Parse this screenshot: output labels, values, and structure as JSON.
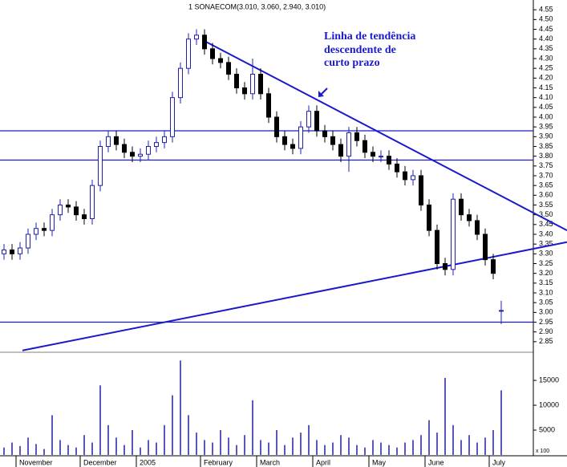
{
  "chart_data": [
    {
      "type": "candlestick",
      "title": "1 SONAECOM(3.010, 3.060, 2.940, 3.010)",
      "annotation": [
        "Linha de tendência",
        "descendente de",
        "curto prazo"
      ],
      "categories": [
        null,
        null,
        "November",
        null,
        null,
        null,
        null,
        null,
        null,
        null,
        "December",
        null,
        null,
        null,
        null,
        null,
        null,
        "2005",
        null,
        null,
        null,
        null,
        null,
        null,
        null,
        "February",
        null,
        null,
        null,
        null,
        null,
        null,
        "March",
        null,
        null,
        null,
        null,
        null,
        null,
        "April",
        null,
        null,
        null,
        null,
        null,
        null,
        "May",
        null,
        null,
        null,
        null,
        null,
        null,
        "June",
        null,
        null,
        null,
        null,
        null,
        null,
        null,
        "July",
        null
      ],
      "open": [
        3.3,
        3.32,
        3.3,
        3.33,
        3.4,
        3.43,
        3.42,
        3.5,
        3.55,
        3.54,
        3.5,
        3.48,
        3.65,
        3.85,
        3.9,
        3.86,
        3.82,
        3.8,
        3.81,
        3.85,
        3.87,
        3.9,
        4.1,
        4.25,
        4.4,
        4.42,
        4.35,
        4.3,
        4.28,
        4.22,
        4.15,
        4.12,
        4.22,
        4.12,
        4.0,
        3.9,
        3.86,
        3.84,
        3.95,
        4.03,
        3.93,
        3.9,
        3.86,
        3.8,
        3.92,
        3.88,
        3.82,
        3.8,
        3.8,
        3.76,
        3.72,
        3.68,
        3.7,
        3.55,
        3.42,
        3.25,
        3.22,
        3.58,
        3.5,
        3.47,
        3.4,
        3.27,
        3.01
      ],
      "high": [
        3.35,
        3.35,
        3.36,
        3.43,
        3.46,
        3.46,
        3.53,
        3.58,
        3.58,
        3.57,
        3.53,
        3.68,
        3.88,
        3.93,
        3.93,
        3.89,
        3.85,
        3.84,
        3.88,
        3.9,
        3.93,
        4.13,
        4.28,
        4.43,
        4.45,
        4.45,
        4.38,
        4.33,
        4.31,
        4.25,
        4.18,
        4.3,
        4.25,
        4.15,
        4.03,
        3.93,
        3.89,
        3.98,
        4.06,
        4.06,
        3.96,
        3.93,
        3.89,
        3.95,
        3.95,
        3.91,
        3.85,
        3.83,
        3.83,
        3.79,
        3.75,
        3.73,
        3.73,
        3.58,
        3.45,
        3.28,
        3.61,
        3.61,
        3.53,
        3.5,
        3.43,
        3.3,
        3.06
      ],
      "low": [
        3.27,
        3.27,
        3.27,
        3.3,
        3.37,
        3.39,
        3.39,
        3.47,
        3.51,
        3.47,
        3.45,
        3.45,
        3.62,
        3.82,
        3.83,
        3.79,
        3.77,
        3.77,
        3.78,
        3.82,
        3.84,
        3.87,
        4.07,
        4.22,
        4.37,
        4.32,
        4.27,
        4.25,
        4.19,
        4.12,
        4.09,
        4.09,
        4.09,
        3.97,
        3.87,
        3.83,
        3.81,
        3.81,
        3.92,
        3.9,
        3.87,
        3.83,
        3.77,
        3.72,
        3.85,
        3.79,
        3.77,
        3.77,
        3.73,
        3.69,
        3.65,
        3.65,
        3.52,
        3.39,
        3.22,
        3.19,
        3.19,
        3.47,
        3.44,
        3.37,
        3.24,
        3.17,
        2.94
      ],
      "close": [
        3.32,
        3.3,
        3.33,
        3.4,
        3.43,
        3.42,
        3.5,
        3.55,
        3.54,
        3.5,
        3.48,
        3.65,
        3.85,
        3.9,
        3.86,
        3.82,
        3.8,
        3.81,
        3.85,
        3.87,
        3.9,
        4.1,
        4.25,
        4.4,
        4.42,
        4.35,
        4.3,
        4.28,
        4.22,
        4.15,
        4.12,
        4.22,
        4.12,
        4.0,
        3.9,
        3.86,
        3.84,
        3.95,
        4.03,
        3.93,
        3.9,
        3.86,
        3.8,
        3.92,
        3.88,
        3.82,
        3.8,
        3.8,
        3.76,
        3.72,
        3.68,
        3.7,
        3.55,
        3.42,
        3.25,
        3.22,
        3.58,
        3.5,
        3.47,
        3.4,
        3.27,
        3.2,
        3.01
      ],
      "up_color": "#2020a8",
      "down_color": "#000000",
      "line_color": "#1a1acc",
      "hlines": [
        3.93,
        3.78,
        2.95
      ],
      "trendlines": [
        {
          "from": [
            25,
            4.39
          ],
          "to": [
            70.2,
            3.42
          ]
        },
        {
          "from": [
            2.3,
            2.805
          ],
          "to": [
            70.2,
            3.36
          ]
        }
      ],
      "ylim": [
        2.8,
        4.6
      ],
      "yticks": [
        2.85,
        {
          "value": 2.9,
          "label": "2.90"
        },
        2.95,
        {
          "value": 3,
          "label": "3.00"
        },
        3.05,
        {
          "value": 3.1,
          "label": "3.10"
        },
        3.15,
        {
          "value": 3.2,
          "label": "3.20"
        },
        3.25,
        {
          "value": 3.3,
          "label": "3.30"
        },
        3.35,
        {
          "value": 3.4,
          "label": "3.40"
        },
        3.45,
        {
          "value": 3.5,
          "label": "3.50"
        },
        3.55,
        {
          "value": 3.6,
          "label": "3.60"
        },
        3.65,
        {
          "value": 3.7,
          "label": "3.70"
        },
        3.75,
        {
          "value": 3.8,
          "label": "3.80"
        },
        3.85,
        {
          "value": 3.9,
          "label": "3.90"
        },
        3.95,
        {
          "value": 4,
          "label": "4.00"
        },
        4.05,
        {
          "value": 4.1,
          "label": "4.10"
        },
        4.15,
        {
          "value": 4.2,
          "label": "4.20"
        },
        4.25,
        {
          "value": 4.3,
          "label": "4.30"
        },
        4.35,
        {
          "value": 4.4,
          "label": "4.40"
        },
        4.45,
        {
          "value": 4.5,
          "label": "4.50"
        },
        4.55
      ]
    },
    {
      "type": "bar",
      "unit_label": "x 100",
      "color": "#2020a8",
      "values": [
        1500,
        2500,
        1800,
        3500,
        2200,
        1200,
        8000,
        3000,
        2000,
        1500,
        4000,
        2500,
        14000,
        6000,
        3500,
        2000,
        5000,
        1500,
        3000,
        2500,
        6000,
        12000,
        19000,
        8000,
        4500,
        3000,
        2500,
        5000,
        3500,
        2000,
        4000,
        11000,
        3000,
        2500,
        5000,
        2000,
        3500,
        4500,
        6000,
        3000,
        2000,
        2500,
        4000,
        3500,
        2000,
        1500,
        3000,
        2500,
        2000,
        1500,
        2500,
        3000,
        4000,
        7000,
        4500,
        15500,
        6000,
        3000,
        4000,
        2500,
        3500,
        5000,
        13000
      ],
      "ylim": [
        0,
        20500
      ],
      "yticks": [
        5000,
        10000,
        15000
      ]
    }
  ]
}
